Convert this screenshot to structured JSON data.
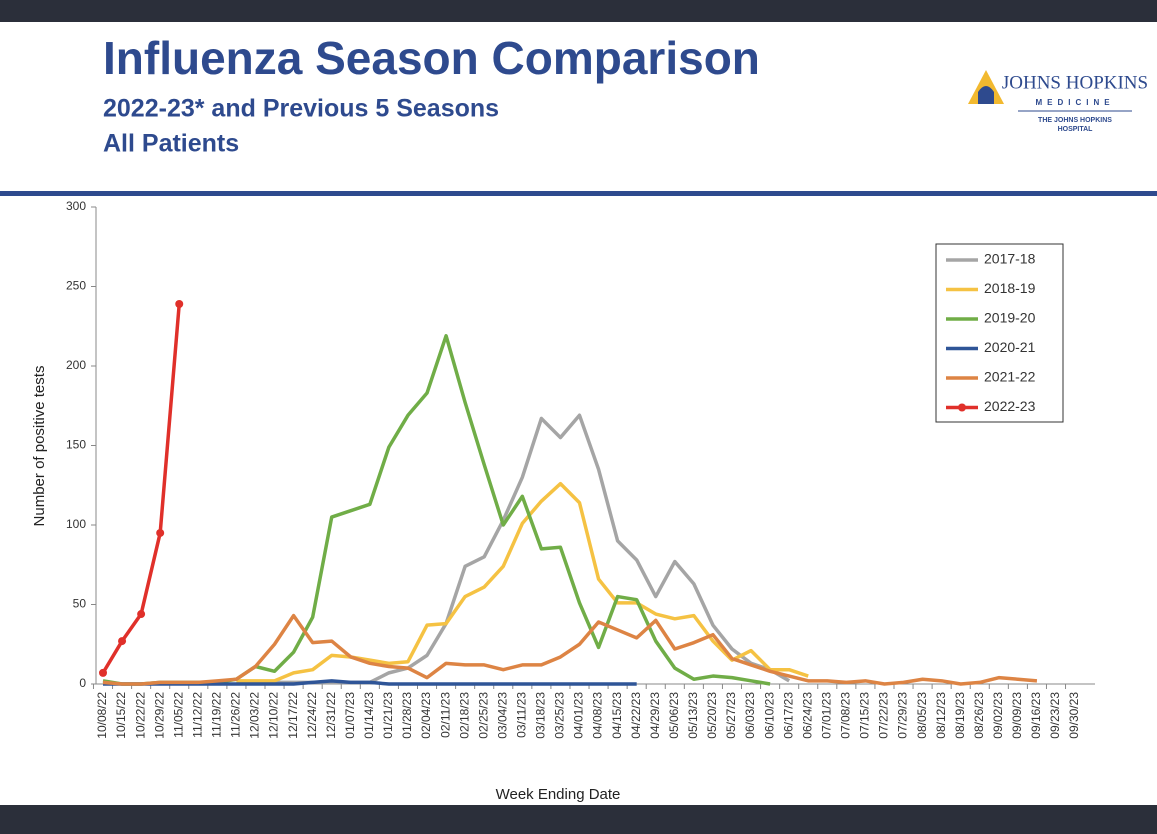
{
  "chart_data": {
    "type": "line",
    "title": "Influenza Season Comparison",
    "subtitle": [
      "2022-23* and Previous 5 Seasons",
      "All Patients"
    ],
    "xlabel": "Week Ending Date",
    "ylabel": "Number of positive tests",
    "categories": [
      "10/08/22",
      "10/15/22",
      "10/22/22",
      "10/29/22",
      "11/05/22",
      "11/12/22",
      "11/19/22",
      "11/26/22",
      "12/03/22",
      "12/10/22",
      "12/17/22",
      "12/24/22",
      "12/31/22",
      "01/07/23",
      "01/14/23",
      "01/21/23",
      "01/28/23",
      "02/04/23",
      "02/11/23",
      "02/18/23",
      "02/25/23",
      "03/04/23",
      "03/11/23",
      "03/18/23",
      "03/25/23",
      "04/01/23",
      "04/08/23",
      "04/15/23",
      "04/22/23",
      "04/29/23",
      "05/06/23",
      "05/13/23",
      "05/20/23",
      "05/27/23",
      "06/03/23",
      "06/10/23",
      "06/17/23",
      "06/24/23",
      "07/01/23",
      "07/08/23",
      "07/15/23",
      "07/22/23",
      "07/29/23",
      "08/05/23",
      "08/12/23",
      "08/19/23",
      "08/26/23",
      "09/02/23",
      "09/09/23",
      "09/16/23",
      "09/23/23",
      "09/30/23"
    ],
    "ylim": [
      0,
      300
    ],
    "yticks": [
      0,
      50,
      100,
      150,
      200,
      250,
      300
    ],
    "grid": false,
    "legend": "upper right",
    "series": [
      {
        "name": "2017-18",
        "color": "#a5a5a5",
        "values": [
          null,
          null,
          null,
          null,
          null,
          null,
          null,
          1,
          1,
          1,
          1,
          1,
          1,
          1,
          1,
          7,
          10,
          18,
          38,
          74,
          80,
          103,
          130,
          167,
          155,
          169,
          135,
          90,
          78,
          55,
          77,
          63,
          37,
          22,
          13,
          9,
          2,
          null,
          null,
          null,
          null,
          null,
          null,
          null,
          null,
          null,
          null,
          null,
          null,
          null,
          null,
          null
        ]
      },
      {
        "name": "2018-19",
        "color": "#f5c243",
        "values": [
          null,
          null,
          null,
          null,
          null,
          null,
          null,
          2,
          2,
          2,
          7,
          9,
          18,
          17,
          15,
          13,
          14,
          37,
          38,
          55,
          61,
          74,
          101,
          115,
          126,
          114,
          66,
          51,
          51,
          44,
          41,
          43,
          27,
          15,
          21,
          9,
          9,
          5,
          null,
          null,
          null,
          null,
          null,
          null,
          null,
          null,
          null,
          null,
          null,
          null,
          null,
          null
        ]
      },
      {
        "name": "2019-20",
        "color": "#70ad47",
        "values": [
          2,
          0,
          0,
          1,
          1,
          1,
          1,
          3,
          11,
          8,
          20,
          42,
          105,
          109,
          113,
          149,
          169,
          183,
          219,
          177,
          138,
          100,
          118,
          85,
          86,
          51,
          23,
          55,
          53,
          27,
          10,
          3,
          5,
          4,
          2,
          0,
          null,
          null,
          null,
          null,
          null,
          null,
          null,
          null,
          null,
          null,
          null,
          null,
          null,
          null,
          null,
          null
        ]
      },
      {
        "name": "2020-21",
        "color": "#2f5597",
        "values": [
          0,
          0,
          0,
          0,
          0,
          0,
          0,
          0,
          0,
          0,
          0,
          1,
          2,
          1,
          1,
          0,
          0,
          0,
          0,
          0,
          0,
          0,
          0,
          0,
          0,
          0,
          0,
          0,
          0,
          null,
          null,
          null,
          null,
          null,
          null,
          null,
          null,
          null,
          null,
          null,
          null,
          null,
          null,
          null,
          null,
          null,
          null,
          null,
          null,
          null,
          null,
          null
        ]
      },
      {
        "name": "2021-22",
        "color": "#dd8444",
        "values": [
          1,
          0,
          0,
          1,
          1,
          1,
          2,
          3,
          11,
          25,
          43,
          26,
          27,
          17,
          13,
          11,
          10,
          4,
          13,
          12,
          12,
          9,
          12,
          12,
          17,
          25,
          39,
          34,
          29,
          40,
          22,
          26,
          31,
          16,
          12,
          8,
          5,
          2,
          2,
          1,
          2,
          0,
          1,
          3,
          2,
          0,
          1,
          4,
          3,
          2,
          null,
          null
        ]
      },
      {
        "name": "2022-23",
        "color": "#e0302a",
        "markers": true,
        "values": [
          7,
          27,
          44,
          95,
          239,
          null,
          null,
          null,
          null,
          null,
          null,
          null,
          null,
          null,
          null,
          null,
          null,
          null,
          null,
          null,
          null,
          null,
          null,
          null,
          null,
          null,
          null,
          null,
          null,
          null,
          null,
          null,
          null,
          null,
          null,
          null,
          null,
          null,
          null,
          null,
          null,
          null,
          null,
          null,
          null,
          null,
          null,
          null,
          null,
          null,
          null,
          null
        ]
      }
    ]
  },
  "logo": {
    "name": "JOHNS HOPKINS",
    "sub": "MEDICINE",
    "hospital": [
      "THE JOHNS HOPKINS",
      "HOSPITAL"
    ]
  }
}
